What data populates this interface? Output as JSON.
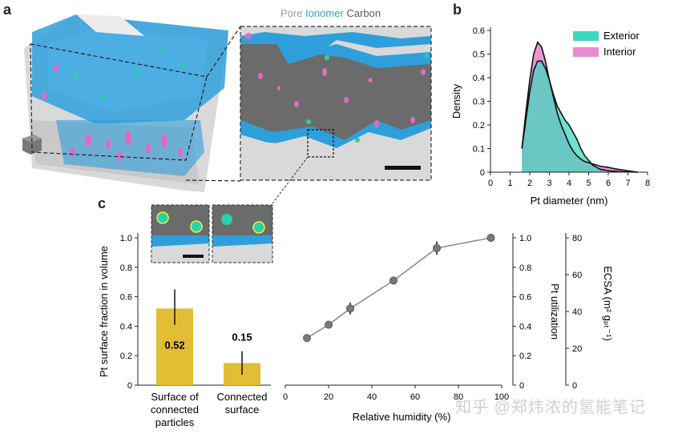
{
  "panels": {
    "a": "a",
    "b": "b",
    "c": "c"
  },
  "legend_a": {
    "pore": "Pore",
    "ionomer": "Ionomer",
    "carbon": "Carbon",
    "pore_color": "#9a9a9a",
    "ionomer_color": "#2e9fd8",
    "carbon_color": "#5a5a5a"
  },
  "watermark": "知乎 @郑炜浓的氢能笔记",
  "colors": {
    "carbon": "#6b6b6b",
    "ionomer": "#2f9fdc",
    "pore": "#d9d9d9",
    "pt": "#de6bc2",
    "pt_surface": "#2ad1a9",
    "exterior": "#3fd7bd",
    "interior": "#e98bcf",
    "bar": "#e2be35",
    "line": "#8c8c8c"
  },
  "chart_data": [
    {
      "type": "area",
      "panel": "b",
      "xlabel": "Pt diameter (nm)",
      "ylabel": "Density",
      "xlim": [
        0,
        8
      ],
      "ylim": [
        0,
        0.6
      ],
      "xticks": [
        "0",
        "1",
        "2",
        "3",
        "4",
        "5",
        "6",
        "7",
        "8"
      ],
      "yticks": [
        "0",
        "0.1",
        "0.2",
        "0.3",
        "0.4",
        "0.5",
        "0.6"
      ],
      "legend": [
        "Exterior",
        "Interior"
      ],
      "legend_position": "top-right",
      "series": [
        {
          "name": "Exterior",
          "x": [
            1.6,
            1.8,
            2.0,
            2.2,
            2.4,
            2.6,
            2.8,
            3.0,
            3.2,
            3.4,
            3.6,
            3.8,
            4.0,
            4.2,
            4.4,
            4.6,
            4.8,
            5.0,
            5.2,
            5.4,
            5.6,
            6.0,
            6.5,
            7.0,
            7.5
          ],
          "y": [
            0.1,
            0.22,
            0.34,
            0.43,
            0.47,
            0.47,
            0.44,
            0.39,
            0.33,
            0.28,
            0.25,
            0.22,
            0.2,
            0.17,
            0.14,
            0.1,
            0.07,
            0.05,
            0.03,
            0.02,
            0.012,
            0.006,
            0.003,
            0.001,
            0
          ]
        },
        {
          "name": "Interior",
          "x": [
            1.6,
            1.8,
            2.0,
            2.2,
            2.4,
            2.6,
            2.8,
            3.0,
            3.2,
            3.4,
            3.6,
            3.8,
            4.0,
            4.2,
            4.4,
            4.6,
            4.8,
            5.0,
            5.2,
            5.4,
            5.6,
            6.0,
            6.5,
            7.0,
            7.5
          ],
          "y": [
            0.1,
            0.25,
            0.39,
            0.5,
            0.55,
            0.53,
            0.47,
            0.39,
            0.32,
            0.25,
            0.2,
            0.16,
            0.12,
            0.09,
            0.07,
            0.055,
            0.045,
            0.04,
            0.035,
            0.03,
            0.025,
            0.02,
            0.012,
            0.006,
            0
          ]
        }
      ]
    },
    {
      "type": "bar",
      "panel": "c-left",
      "ylabel": "Pt surface fraction in volume",
      "ylim": [
        0,
        1.0
      ],
      "yticks": [
        "0",
        "0.2",
        "0.4",
        "0.6",
        "0.8",
        "1.0"
      ],
      "categories": [
        "Surface of connected particles",
        "Connected surface"
      ],
      "values": [
        0.52,
        0.15
      ],
      "labels": [
        "0.52",
        "0.15"
      ],
      "errors": [
        [
          0.41,
          0.65
        ],
        [
          0.07,
          0.23
        ]
      ]
    },
    {
      "type": "line",
      "panel": "c-right",
      "xlabel": "Relative humidity (%)",
      "ylabel": "Pt utilization",
      "y2label": "ECSA (m² gₚₜ⁻¹)",
      "xlim": [
        0,
        100
      ],
      "ylim": [
        0,
        1.0
      ],
      "y2lim": [
        0,
        80
      ],
      "xticks": [
        "0",
        "20",
        "40",
        "60",
        "80",
        "100"
      ],
      "yticks": [
        "0",
        "0.2",
        "0.4",
        "0.6",
        "0.8",
        "1.0"
      ],
      "y2ticks": [
        "0",
        "20",
        "40",
        "60",
        "80"
      ],
      "x": [
        10,
        20,
        30,
        50,
        70,
        95
      ],
      "y": [
        0.32,
        0.41,
        0.52,
        0.71,
        0.93,
        1.0
      ],
      "err": [
        0.015,
        0.015,
        0.04,
        0.015,
        0.045,
        0.0
      ]
    }
  ]
}
